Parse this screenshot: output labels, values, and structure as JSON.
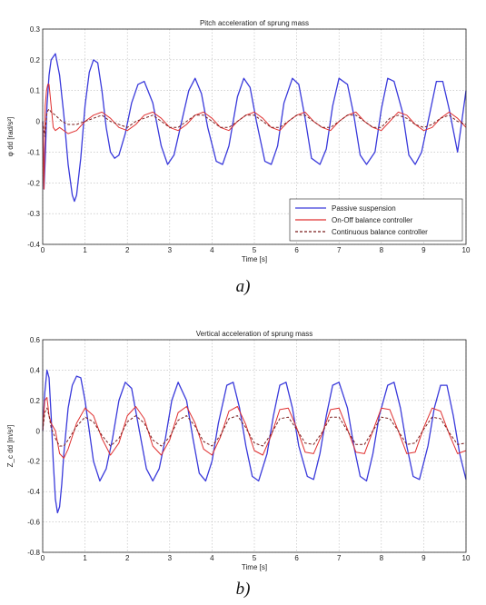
{
  "figure": {
    "captions": [
      "a)",
      "b)"
    ]
  },
  "chart_data": [
    {
      "type": "line",
      "title": "Pitch acceleration of sprung mass",
      "xlabel": "Time [s]",
      "ylabel": "φ dd [rad/s²]",
      "xlim": [
        0,
        10
      ],
      "ylim": [
        -0.4,
        0.3
      ],
      "xticks": [
        0,
        1,
        2,
        3,
        4,
        5,
        6,
        7,
        8,
        9,
        10
      ],
      "yticks": [
        -0.4,
        -0.3,
        -0.2,
        -0.1,
        0,
        0.1,
        0.2,
        0.3
      ],
      "grid": true,
      "legend_position": "bottom-right",
      "series": [
        {
          "name": "Passive suspension",
          "color": "#3a3adb",
          "style": "solid",
          "x": [
            0,
            0.03,
            0.06,
            0.1,
            0.15,
            0.2,
            0.3,
            0.4,
            0.5,
            0.6,
            0.7,
            0.75,
            0.8,
            0.9,
            1.0,
            1.1,
            1.2,
            1.3,
            1.4,
            1.5,
            1.6,
            1.7,
            1.8,
            1.95,
            2.1,
            2.25,
            2.4,
            2.6,
            2.8,
            2.95,
            3.1,
            3.25,
            3.45,
            3.6,
            3.75,
            3.9,
            4.1,
            4.25,
            4.4,
            4.6,
            4.75,
            4.9,
            5.05,
            5.25,
            5.4,
            5.55,
            5.7,
            5.9,
            6.05,
            6.2,
            6.35,
            6.55,
            6.7,
            6.85,
            7.0,
            7.2,
            7.35,
            7.5,
            7.65,
            7.85,
            8.0,
            8.15,
            8.3,
            8.5,
            8.65,
            8.8,
            8.95,
            9.15,
            9.3,
            9.45,
            9.6,
            9.8,
            10.0
          ],
          "y": [
            0,
            -0.22,
            -0.12,
            0.05,
            0.15,
            0.2,
            0.22,
            0.15,
            0.02,
            -0.14,
            -0.24,
            -0.26,
            -0.24,
            -0.12,
            0.05,
            0.16,
            0.2,
            0.19,
            0.1,
            -0.02,
            -0.1,
            -0.12,
            -0.11,
            -0.04,
            0.06,
            0.12,
            0.13,
            0.06,
            -0.08,
            -0.14,
            -0.11,
            -0.02,
            0.1,
            0.14,
            0.09,
            -0.02,
            -0.13,
            -0.14,
            -0.08,
            0.08,
            0.14,
            0.11,
            0.0,
            -0.13,
            -0.14,
            -0.08,
            0.06,
            0.14,
            0.12,
            0.01,
            -0.12,
            -0.14,
            -0.09,
            0.05,
            0.14,
            0.12,
            0.02,
            -0.11,
            -0.14,
            -0.1,
            0.04,
            0.14,
            0.13,
            0.03,
            -0.11,
            -0.14,
            -0.1,
            0.03,
            0.13,
            0.13,
            0.04,
            -0.1,
            0.1
          ]
        },
        {
          "name": "On-Off balance controller",
          "color": "#e03030",
          "style": "solid",
          "x": [
            0,
            0.03,
            0.06,
            0.09,
            0.12,
            0.15,
            0.2,
            0.25,
            0.3,
            0.4,
            0.6,
            0.8,
            1.0,
            1.2,
            1.4,
            1.6,
            1.8,
            2.0,
            2.2,
            2.4,
            2.6,
            2.8,
            3.0,
            3.2,
            3.4,
            3.6,
            3.8,
            4.0,
            4.2,
            4.4,
            4.6,
            4.8,
            5.0,
            5.2,
            5.4,
            5.6,
            5.8,
            6.0,
            6.2,
            6.4,
            6.6,
            6.8,
            7.0,
            7.2,
            7.4,
            7.6,
            7.8,
            8.0,
            8.2,
            8.4,
            8.6,
            8.8,
            9.0,
            9.2,
            9.4,
            9.6,
            9.8,
            10.0
          ],
          "y": [
            0,
            -0.22,
            0.05,
            0.1,
            0.12,
            0.12,
            0.05,
            -0.02,
            -0.03,
            -0.02,
            -0.04,
            -0.03,
            0.0,
            0.02,
            0.03,
            0.01,
            -0.02,
            -0.03,
            -0.01,
            0.02,
            0.03,
            0.01,
            -0.02,
            -0.03,
            -0.01,
            0.02,
            0.03,
            0.01,
            -0.02,
            -0.03,
            0.0,
            0.02,
            0.03,
            0.01,
            -0.02,
            -0.03,
            0.0,
            0.02,
            0.03,
            0.0,
            -0.02,
            -0.03,
            0.0,
            0.02,
            0.03,
            0.0,
            -0.02,
            -0.03,
            0.0,
            0.03,
            0.02,
            -0.01,
            -0.03,
            -0.02,
            0.01,
            0.03,
            0.01,
            -0.02
          ]
        },
        {
          "name": "Continuous balance controller",
          "color": "#7a1f1f",
          "style": "dashed",
          "x": [
            0,
            0.05,
            0.1,
            0.15,
            0.2,
            0.3,
            0.45,
            0.6,
            0.8,
            1.0,
            1.2,
            1.4,
            1.6,
            1.8,
            2.0,
            2.2,
            2.4,
            2.6,
            2.8,
            3.0,
            3.2,
            3.4,
            3.6,
            3.8,
            4.0,
            4.2,
            4.4,
            4.6,
            4.8,
            5.0,
            5.2,
            5.4,
            5.6,
            5.8,
            6.0,
            6.2,
            6.4,
            6.6,
            6.8,
            7.0,
            7.2,
            7.4,
            7.6,
            7.8,
            8.0,
            8.2,
            8.4,
            8.6,
            8.8,
            9.0,
            9.2,
            9.4,
            9.6,
            9.8,
            10.0
          ],
          "y": [
            0,
            -0.05,
            0.03,
            0.04,
            0.03,
            0.02,
            0.0,
            -0.01,
            -0.01,
            0.0,
            0.01,
            0.02,
            0.0,
            -0.01,
            -0.02,
            0.0,
            0.01,
            0.02,
            0.0,
            -0.02,
            -0.02,
            0.0,
            0.02,
            0.02,
            0.0,
            -0.02,
            -0.02,
            0.0,
            0.02,
            0.02,
            0.0,
            -0.02,
            -0.02,
            0.0,
            0.02,
            0.02,
            0.0,
            -0.02,
            -0.02,
            0.0,
            0.02,
            0.02,
            0.0,
            -0.02,
            -0.02,
            0.01,
            0.02,
            0.01,
            -0.01,
            -0.02,
            -0.01,
            0.01,
            0.02,
            0.0,
            -0.01
          ]
        }
      ]
    },
    {
      "type": "line",
      "title": "Vertical acceleration of sprung mass",
      "xlabel": "Time [s]",
      "ylabel": "Z_c dd [m/s²]",
      "xlim": [
        0,
        10
      ],
      "ylim": [
        -0.8,
        0.6
      ],
      "xticks": [
        0,
        1,
        2,
        3,
        4,
        5,
        6,
        7,
        8,
        9,
        10
      ],
      "yticks": [
        -0.8,
        -0.6,
        -0.4,
        -0.2,
        0,
        0.2,
        0.4,
        0.6
      ],
      "grid": true,
      "series": [
        {
          "name": "Passive suspension",
          "color": "#3a3adb",
          "style": "solid",
          "x": [
            0,
            0.05,
            0.1,
            0.15,
            0.2,
            0.25,
            0.3,
            0.35,
            0.4,
            0.45,
            0.5,
            0.6,
            0.7,
            0.8,
            0.9,
            1.0,
            1.1,
            1.2,
            1.35,
            1.5,
            1.65,
            1.8,
            1.95,
            2.1,
            2.25,
            2.45,
            2.6,
            2.75,
            2.9,
            3.05,
            3.2,
            3.4,
            3.55,
            3.7,
            3.85,
            4.0,
            4.15,
            4.35,
            4.5,
            4.65,
            4.8,
            4.95,
            5.1,
            5.3,
            5.45,
            5.6,
            5.75,
            5.9,
            6.05,
            6.25,
            6.4,
            6.55,
            6.7,
            6.85,
            7.0,
            7.2,
            7.35,
            7.5,
            7.65,
            7.8,
            7.95,
            8.15,
            8.3,
            8.45,
            8.6,
            8.75,
            8.9,
            9.1,
            9.25,
            9.4,
            9.55,
            9.7,
            9.85,
            10.0
          ],
          "y": [
            0,
            0.25,
            0.4,
            0.35,
            0.1,
            -0.2,
            -0.45,
            -0.54,
            -0.5,
            -0.35,
            -0.15,
            0.15,
            0.3,
            0.36,
            0.35,
            0.2,
            0.0,
            -0.2,
            -0.33,
            -0.25,
            -0.05,
            0.2,
            0.32,
            0.28,
            0.05,
            -0.25,
            -0.33,
            -0.25,
            -0.05,
            0.2,
            0.32,
            0.2,
            -0.05,
            -0.28,
            -0.33,
            -0.2,
            0.05,
            0.3,
            0.32,
            0.15,
            -0.1,
            -0.3,
            -0.33,
            -0.15,
            0.1,
            0.3,
            0.32,
            0.15,
            -0.1,
            -0.3,
            -0.32,
            -0.15,
            0.1,
            0.3,
            0.32,
            0.15,
            -0.1,
            -0.3,
            -0.33,
            -0.15,
            0.1,
            0.3,
            0.32,
            0.15,
            -0.1,
            -0.3,
            -0.32,
            -0.1,
            0.15,
            0.3,
            0.3,
            0.1,
            -0.15,
            -0.32
          ]
        },
        {
          "name": "On-Off balance controller",
          "color": "#e03030",
          "style": "solid",
          "x": [
            0,
            0.05,
            0.1,
            0.15,
            0.2,
            0.3,
            0.4,
            0.5,
            0.6,
            0.8,
            1.0,
            1.2,
            1.4,
            1.6,
            1.8,
            2.0,
            2.2,
            2.4,
            2.6,
            2.8,
            3.0,
            3.2,
            3.4,
            3.6,
            3.8,
            4.0,
            4.2,
            4.4,
            4.6,
            4.8,
            5.0,
            5.2,
            5.4,
            5.6,
            5.8,
            6.0,
            6.2,
            6.4,
            6.6,
            6.8,
            7.0,
            7.2,
            7.4,
            7.6,
            7.8,
            8.0,
            8.2,
            8.4,
            8.6,
            8.8,
            9.0,
            9.2,
            9.4,
            9.6,
            9.8,
            10.0
          ],
          "y": [
            0,
            0.2,
            0.22,
            0.1,
            0.05,
            0.0,
            -0.15,
            -0.18,
            -0.12,
            0.05,
            0.15,
            0.1,
            -0.05,
            -0.16,
            -0.08,
            0.1,
            0.16,
            0.08,
            -0.1,
            -0.16,
            -0.06,
            0.12,
            0.16,
            0.05,
            -0.12,
            -0.16,
            -0.04,
            0.13,
            0.16,
            0.04,
            -0.13,
            -0.16,
            -0.03,
            0.14,
            0.15,
            0.02,
            -0.14,
            -0.15,
            -0.02,
            0.14,
            0.15,
            0.01,
            -0.14,
            -0.15,
            0.0,
            0.15,
            0.14,
            0.0,
            -0.15,
            -0.14,
            0.02,
            0.15,
            0.13,
            -0.02,
            -0.15,
            -0.13
          ]
        },
        {
          "name": "Continuous balance controller",
          "color": "#7a1f1f",
          "style": "dashed",
          "x": [
            0,
            0.05,
            0.1,
            0.15,
            0.2,
            0.3,
            0.4,
            0.5,
            0.6,
            0.8,
            1.0,
            1.2,
            1.4,
            1.6,
            1.8,
            2.0,
            2.2,
            2.4,
            2.6,
            2.8,
            3.0,
            3.2,
            3.4,
            3.6,
            3.8,
            4.0,
            4.2,
            4.4,
            4.6,
            4.8,
            5.0,
            5.2,
            5.4,
            5.6,
            5.8,
            6.0,
            6.2,
            6.4,
            6.6,
            6.8,
            7.0,
            7.2,
            7.4,
            7.6,
            7.8,
            8.0,
            8.2,
            8.4,
            8.6,
            8.8,
            9.0,
            9.2,
            9.4,
            9.6,
            9.8,
            10.0
          ],
          "y": [
            0,
            0.12,
            0.15,
            0.1,
            0.02,
            -0.05,
            -0.1,
            -0.1,
            -0.06,
            0.03,
            0.09,
            0.06,
            -0.03,
            -0.1,
            -0.05,
            0.06,
            0.1,
            0.05,
            -0.06,
            -0.1,
            -0.04,
            0.07,
            0.1,
            0.03,
            -0.07,
            -0.1,
            -0.03,
            0.08,
            0.1,
            0.02,
            -0.08,
            -0.1,
            -0.02,
            0.08,
            0.09,
            0.01,
            -0.08,
            -0.09,
            -0.01,
            0.09,
            0.09,
            0.0,
            -0.09,
            -0.09,
            0.0,
            0.09,
            0.08,
            0.0,
            -0.09,
            -0.08,
            0.01,
            0.09,
            0.08,
            -0.01,
            -0.09,
            -0.08
          ]
        }
      ]
    }
  ]
}
